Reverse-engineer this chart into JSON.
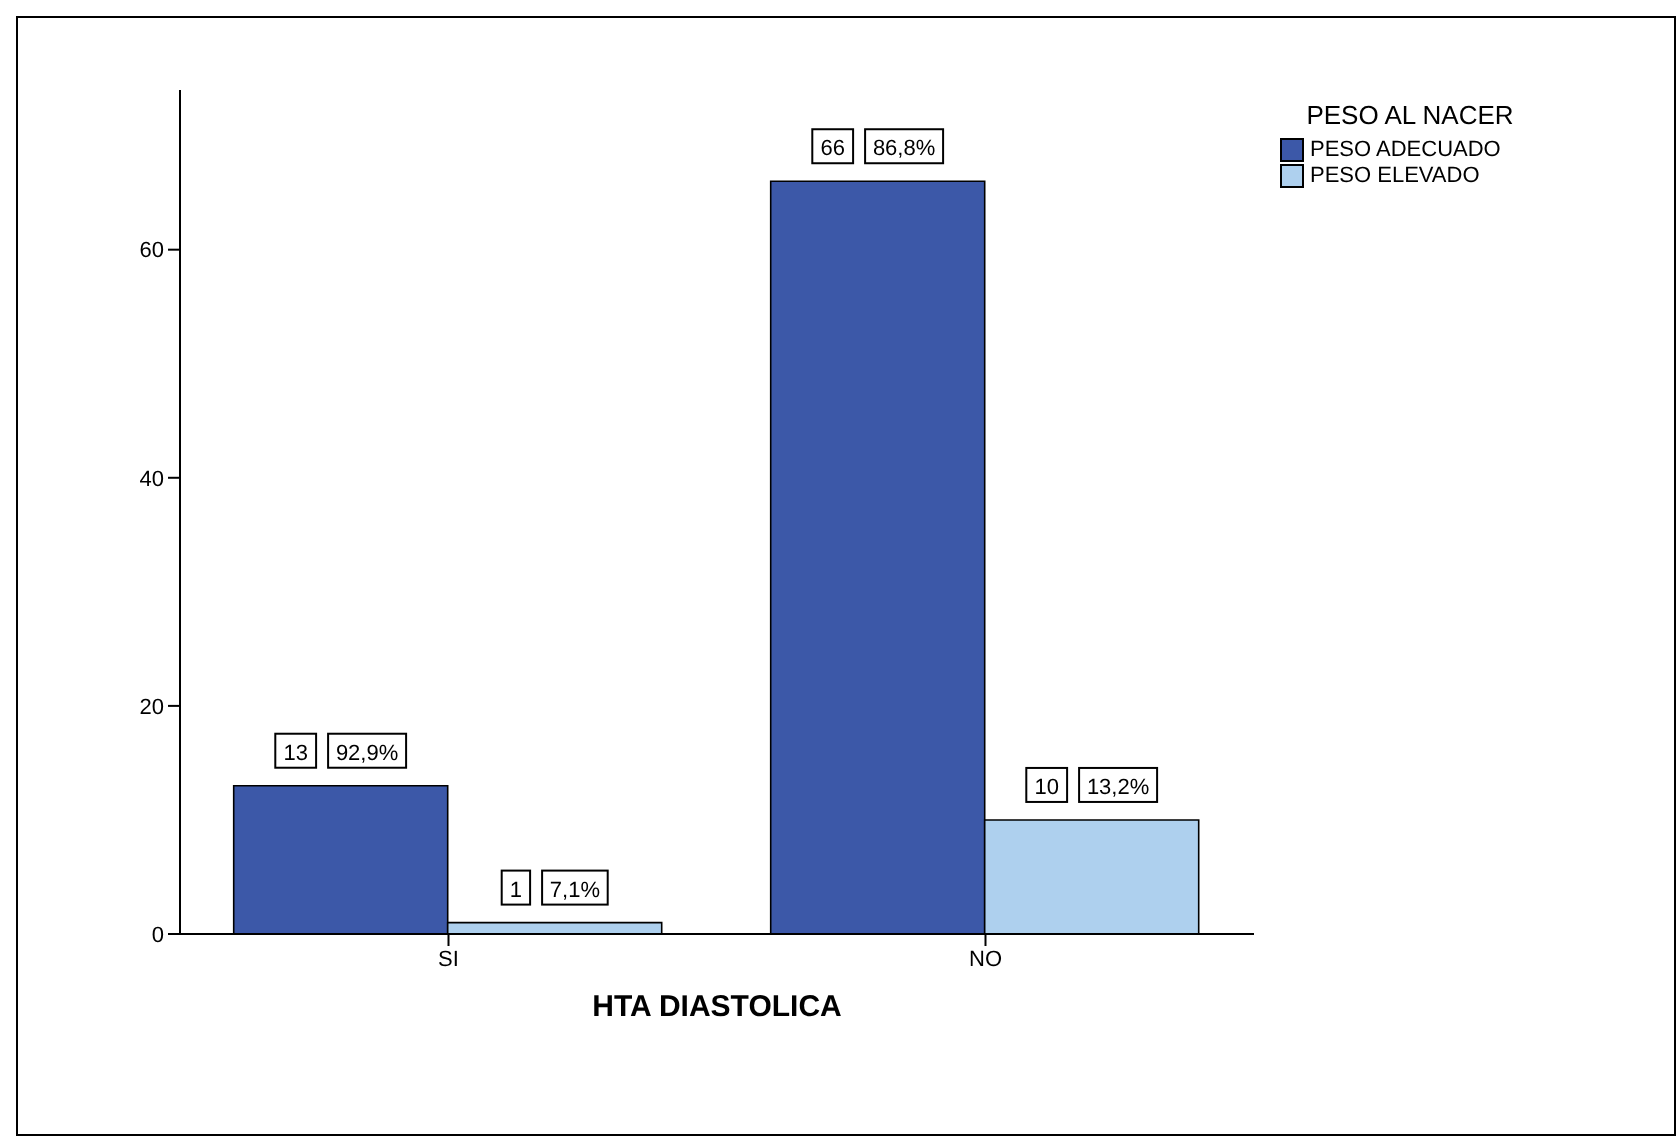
{
  "chart_data": {
    "type": "bar",
    "xlabel": "HTA DIASTOLICA",
    "legend_title": "PESO AL NACER",
    "categories": [
      "SI",
      "NO"
    ],
    "series": [
      {
        "name": "PESO ADECUADO",
        "color": "#3c58a8",
        "values": [
          13,
          66
        ],
        "value_labels": [
          "13 92,9%",
          "66 86,8%"
        ]
      },
      {
        "name": "PESO ELEVADO",
        "color": "#aed0ee",
        "values": [
          1,
          10
        ],
        "value_labels": [
          "1 7,1%",
          "10 13,2%"
        ]
      }
    ],
    "ylim": [
      0,
      74
    ],
    "yticks": [
      0,
      20,
      40,
      60
    ],
    "grid": false,
    "legend": "top right"
  }
}
